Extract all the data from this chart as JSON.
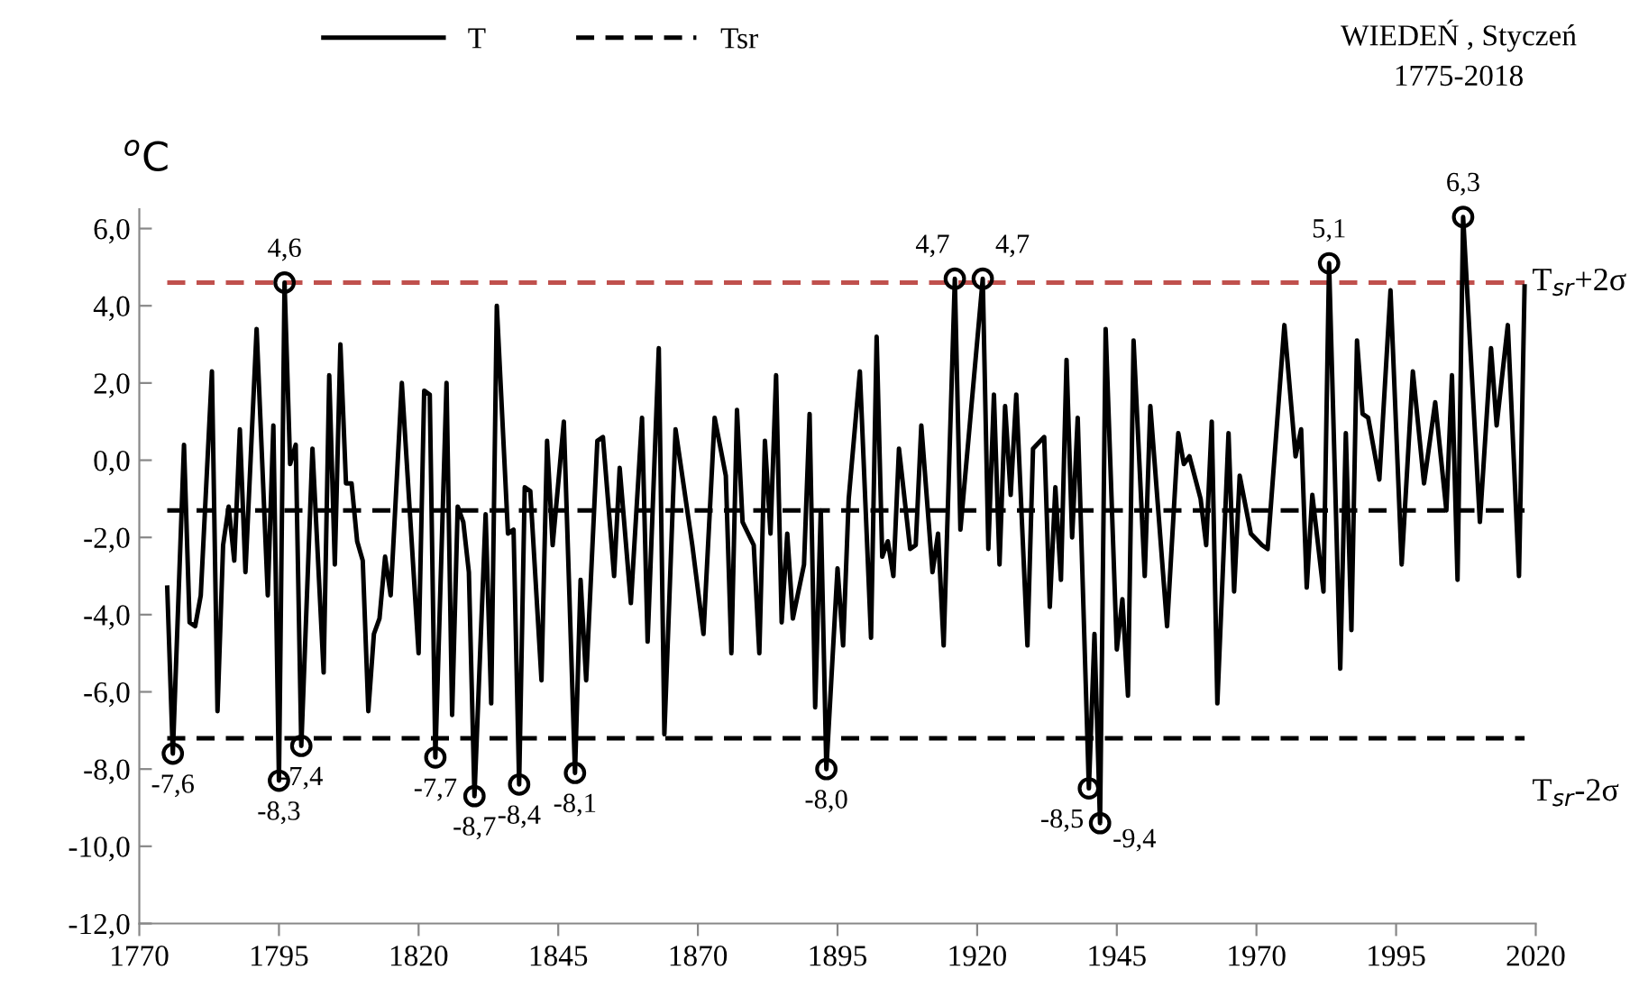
{
  "chart_data": {
    "type": "line",
    "title": "WIEDEŃ , Styczeń",
    "subtitle": "1775-2018",
    "ylabel": "$^{o}$C",
    "xlim": [
      1770,
      2020
    ],
    "xticks": [
      1770,
      1795,
      1820,
      1845,
      1870,
      1895,
      1920,
      1945,
      1970,
      1995,
      2020
    ],
    "ylim": [
      -12,
      6.5
    ],
    "yticks": [
      {
        "value": -12,
        "label": "-12,0"
      },
      {
        "value": -10,
        "label": "-10,0"
      },
      {
        "value": -8,
        "label": "-8,0"
      },
      {
        "value": -6,
        "label": "-6,0"
      },
      {
        "value": -4,
        "label": "-4,0"
      },
      {
        "value": -2,
        "label": "-2,0"
      },
      {
        "value": 0,
        "label": "0,0"
      },
      {
        "value": 2,
        "label": "2,0"
      },
      {
        "value": 4,
        "label": "4,0"
      },
      {
        "value": 6,
        "label": "6,0"
      }
    ],
    "grid": false,
    "legend": "top",
    "marker": "none",
    "series": [
      {
        "name": "T",
        "color": "#000000",
        "line_style": "solid",
        "x": [
          1775,
          1776,
          1778,
          1779,
          1780,
          1781,
          1783,
          1784,
          1785,
          1786,
          1787,
          1788,
          1789,
          1791,
          1793,
          1794,
          1795,
          1796,
          1797,
          1798,
          1799,
          1801,
          1803,
          1804,
          1805,
          1806,
          1807,
          1808,
          1809,
          1810,
          1811,
          1812,
          1813,
          1814,
          1815,
          1817,
          1820,
          1821,
          1822,
          1823,
          1825,
          1826,
          1827,
          1828,
          1829,
          1830,
          1832,
          1833,
          1834,
          1836,
          1837,
          1838,
          1839,
          1840,
          1842,
          1843,
          1844,
          1846,
          1847,
          1848,
          1849,
          1850,
          1852,
          1853,
          1855,
          1856,
          1858,
          1860,
          1861,
          1863,
          1864,
          1866,
          1869,
          1871,
          1873,
          1875,
          1876,
          1877,
          1878,
          1880,
          1881,
          1882,
          1883,
          1884,
          1885,
          1886,
          1887,
          1889,
          1890,
          1891,
          1892,
          1893,
          1895,
          1896,
          1897,
          1899,
          1901,
          1902,
          1903,
          1904,
          1905,
          1906,
          1908,
          1909,
          1910,
          1912,
          1913,
          1914,
          1916,
          1917,
          1921,
          1922,
          1923,
          1924,
          1925,
          1926,
          1927,
          1929,
          1930,
          1932,
          1933,
          1934,
          1935,
          1936,
          1937,
          1938,
          1940,
          1941,
          1942,
          1943,
          1945,
          1946,
          1947,
          1948,
          1950,
          1951,
          1954,
          1956,
          1957,
          1958,
          1960,
          1961,
          1962,
          1963,
          1965,
          1966,
          1967,
          1969,
          1971,
          1972,
          1975,
          1977,
          1978,
          1979,
          1980,
          1982,
          1983,
          1985,
          1986,
          1987,
          1988,
          1989,
          1990,
          1992,
          1994,
          1996,
          1998,
          2000,
          2002,
          2004,
          2005,
          2006,
          2007,
          2010,
          2012,
          2013,
          2015,
          2017,
          2018
        ],
        "values": [
          -3.3,
          -7.6,
          0.4,
          -4.2,
          -4.3,
          -3.5,
          2.3,
          -6.5,
          -2.2,
          -1.2,
          -2.6,
          0.8,
          -2.9,
          3.4,
          -3.5,
          0.9,
          -8.3,
          4.6,
          -0.1,
          0.4,
          -7.4,
          0.3,
          -5.5,
          2.2,
          -2.7,
          3.0,
          -0.6,
          -0.6,
          -2.1,
          -2.6,
          -6.5,
          -4.5,
          -4.1,
          -2.5,
          -3.5,
          2.0,
          -5.0,
          1.8,
          1.7,
          -7.7,
          2.0,
          -6.6,
          -1.2,
          -1.6,
          -2.9,
          -8.7,
          -1.4,
          -6.3,
          4.0,
          -1.9,
          -1.8,
          -8.4,
          -0.7,
          -0.8,
          -5.7,
          0.5,
          -2.2,
          1.0,
          -3.5,
          -8.1,
          -3.1,
          -5.7,
          0.5,
          0.6,
          -3.0,
          -0.2,
          -3.7,
          1.1,
          -4.7,
          2.9,
          -7.1,
          0.8,
          -2.2,
          -4.5,
          1.1,
          -0.4,
          -5.0,
          1.3,
          -1.6,
          -2.2,
          -5.0,
          0.5,
          -1.9,
          2.2,
          -4.2,
          -1.9,
          -4.1,
          -2.7,
          1.2,
          -6.4,
          -1.3,
          -8.0,
          -2.8,
          -4.8,
          -1.0,
          2.3,
          -4.6,
          3.2,
          -2.5,
          -2.1,
          -3.0,
          0.3,
          -2.3,
          -2.2,
          0.9,
          -2.9,
          -1.9,
          -4.8,
          4.7,
          -1.8,
          4.7,
          -2.3,
          1.7,
          -2.7,
          1.4,
          -0.9,
          1.7,
          -4.8,
          0.3,
          0.6,
          -3.8,
          -0.7,
          -3.1,
          2.6,
          -2.0,
          1.1,
          -8.5,
          -4.5,
          -9.4,
          3.4,
          -4.9,
          -3.6,
          -6.1,
          3.1,
          -3.0,
          1.4,
          -4.3,
          0.7,
          -0.1,
          0.1,
          -1.0,
          -2.2,
          1.0,
          -6.3,
          0.7,
          -3.4,
          -0.4,
          -1.9,
          -2.2,
          -2.3,
          3.5,
          0.1,
          0.8,
          -3.3,
          -0.9,
          -3.4,
          5.1,
          -5.4,
          0.7,
          -4.4,
          3.1,
          1.2,
          1.1,
          -0.5,
          4.4,
          -2.7,
          2.3,
          -0.6,
          1.5,
          -1.3,
          2.2,
          -3.1,
          6.3,
          -1.6,
          2.9,
          0.9,
          3.5,
          -3.0,
          4.5
        ]
      },
      {
        "name": "Tsr",
        "color": "#000000",
        "line_style": "dashed",
        "x": [
          1775,
          2018
        ],
        "values": [
          -1.3,
          -1.3
        ]
      },
      {
        "type": "scatter",
        "color": "#000000",
        "marker": "circle",
        "x": [
          1776,
          1795,
          1796,
          1799,
          1823,
          1830,
          1838,
          1848,
          1893,
          1916,
          1921,
          1940,
          1942,
          1983,
          2007
        ],
        "values": [
          -7.6,
          -8.3,
          4.6,
          -7.4,
          -7.7,
          -8.7,
          -8.4,
          -8.1,
          -8.0,
          4.7,
          4.7,
          -8.5,
          -9.4,
          5.1,
          6.3
        ],
        "value_labels": [
          "-7,6",
          "-8,3",
          "4,6",
          "-7,4",
          "-7,7",
          "-8,7",
          "-8,4",
          "-8,1",
          "-8,0",
          "4,7",
          "4,7",
          "-8,5",
          "-9,4",
          "5,1",
          "6,3"
        ]
      }
    ],
    "ref_lines": [
      {
        "axis": "y",
        "value": 4.6,
        "label": "T$_{sr}$+2σ",
        "color": "#c0504d",
        "line_style": "dashed"
      },
      {
        "axis": "y",
        "value": -7.2,
        "label": "T$_{sr}$-2σ",
        "color": "#000000",
        "line_style": "dashed"
      }
    ]
  }
}
